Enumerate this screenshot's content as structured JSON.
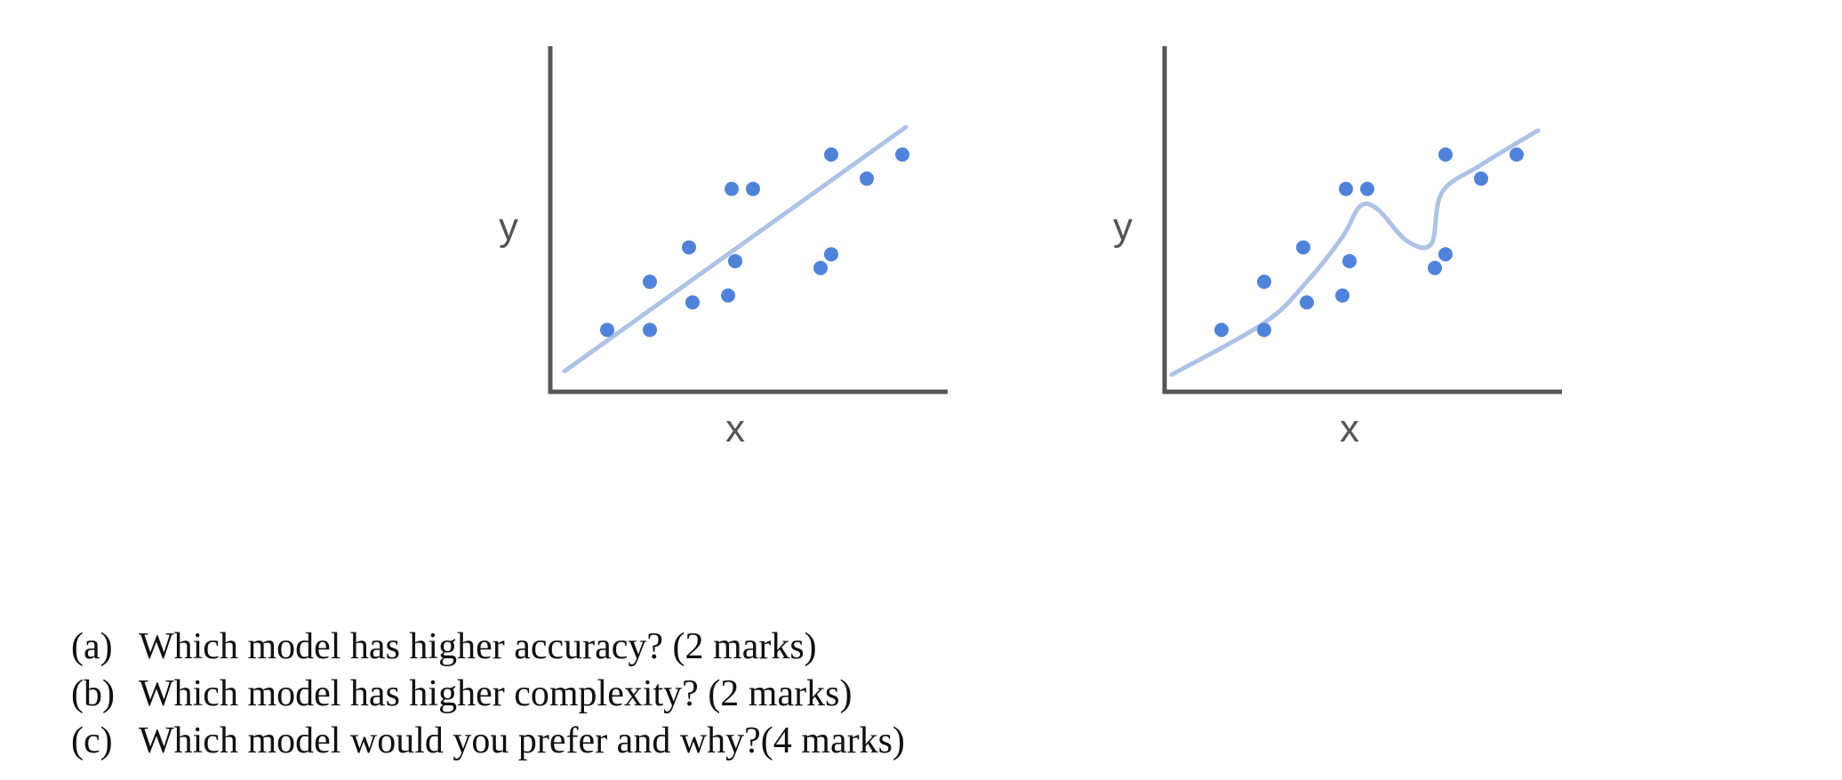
{
  "chart_data": [
    {
      "type": "scatter",
      "model": "linear-fit",
      "xlabel": "x",
      "ylabel": "y",
      "xlim": [
        0,
        10
      ],
      "ylim": [
        0,
        10
      ],
      "grid": false,
      "points": [
        {
          "x": 1.6,
          "y": 1.8
        },
        {
          "x": 2.8,
          "y": 1.8
        },
        {
          "x": 2.8,
          "y": 3.2
        },
        {
          "x": 3.9,
          "y": 4.2
        },
        {
          "x": 4.0,
          "y": 2.6
        },
        {
          "x": 5.0,
          "y": 2.8
        },
        {
          "x": 5.2,
          "y": 3.8
        },
        {
          "x": 5.1,
          "y": 5.9
        },
        {
          "x": 5.7,
          "y": 5.9
        },
        {
          "x": 7.6,
          "y": 3.6
        },
        {
          "x": 7.9,
          "y": 4.0
        },
        {
          "x": 7.9,
          "y": 6.9
        },
        {
          "x": 8.9,
          "y": 6.2
        },
        {
          "x": 9.9,
          "y": 6.9
        }
      ],
      "fit_line": [
        {
          "x": 0.4,
          "y": 0.6
        },
        {
          "x": 10.0,
          "y": 7.7
        }
      ]
    },
    {
      "type": "scatter",
      "model": "complex-curve-fit",
      "xlabel": "x",
      "ylabel": "y",
      "xlim": [
        0,
        10
      ],
      "ylim": [
        0,
        10
      ],
      "grid": false,
      "points": [
        {
          "x": 1.6,
          "y": 1.8
        },
        {
          "x": 2.8,
          "y": 1.8
        },
        {
          "x": 2.8,
          "y": 3.2
        },
        {
          "x": 3.9,
          "y": 4.2
        },
        {
          "x": 4.0,
          "y": 2.6
        },
        {
          "x": 5.0,
          "y": 2.8
        },
        {
          "x": 5.2,
          "y": 3.8
        },
        {
          "x": 5.1,
          "y": 5.9
        },
        {
          "x": 5.7,
          "y": 5.9
        },
        {
          "x": 7.6,
          "y": 3.6
        },
        {
          "x": 7.9,
          "y": 4.0
        },
        {
          "x": 7.9,
          "y": 6.9
        },
        {
          "x": 8.9,
          "y": 6.2
        },
        {
          "x": 9.9,
          "y": 6.9
        }
      ],
      "fit_curve": [
        {
          "x": 0.2,
          "y": 0.5
        },
        {
          "x": 2.8,
          "y": 2.0
        },
        {
          "x": 4.0,
          "y": 3.2
        },
        {
          "x": 5.0,
          "y": 4.5
        },
        {
          "x": 5.5,
          "y": 5.4
        },
        {
          "x": 6.0,
          "y": 5.3
        },
        {
          "x": 6.8,
          "y": 4.4
        },
        {
          "x": 7.5,
          "y": 4.3
        },
        {
          "x": 7.8,
          "y": 5.8
        },
        {
          "x": 8.9,
          "y": 6.6
        },
        {
          "x": 10.5,
          "y": 7.6
        }
      ]
    }
  ],
  "style": {
    "point_color": "#4f83db",
    "line_color": "#aec2e6",
    "axis_color": "#555555",
    "text_color": "#111111"
  },
  "questions": [
    {
      "letter": "(a)",
      "text": "Which model has higher accuracy? (2 marks)"
    },
    {
      "letter": "(b)",
      "text": "Which model has higher complexity? (2 marks)"
    },
    {
      "letter": "(c)",
      "text": "Which model would you prefer and why?(4 marks)"
    }
  ]
}
